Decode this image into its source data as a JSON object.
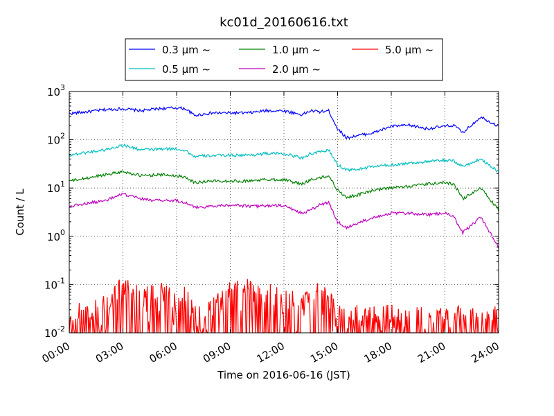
{
  "chart_data": {
    "type": "line",
    "title": "kc01d_20160616.txt",
    "xlabel": "Time on 2016-06-16 (JST)",
    "ylabel": "Count / L",
    "x_ticks": [
      "00:00",
      "03:00",
      "06:00",
      "09:00",
      "12:00",
      "15:00",
      "18:00",
      "21:00",
      "24:00"
    ],
    "x_unit_hours": [
      0,
      24
    ],
    "y_scale": "log",
    "ylim": [
      0.01,
      1000
    ],
    "y_ticks": [
      {
        "base": "10",
        "exp": "-2"
      },
      {
        "base": "10",
        "exp": "-1"
      },
      {
        "base": "10",
        "exp": "0"
      },
      {
        "base": "10",
        "exp": "1"
      },
      {
        "base": "10",
        "exp": "2"
      },
      {
        "base": "10",
        "exp": "3"
      }
    ],
    "grid": true,
    "legend_position": "top",
    "series": [
      {
        "name": "0.3 μm ~",
        "color": "#0000ff",
        "x": [
          0,
          1,
          2,
          3,
          4,
          5,
          6,
          6.5,
          7,
          8,
          9,
          10,
          11,
          12,
          13,
          13.5,
          14,
          14.5,
          15,
          15.5,
          16,
          17,
          18,
          19,
          20,
          21,
          21.5,
          22,
          23,
          24
        ],
        "y": [
          350,
          380,
          420,
          440,
          400,
          440,
          460,
          440,
          320,
          360,
          360,
          360,
          400,
          400,
          330,
          400,
          380,
          400,
          170,
          110,
          120,
          140,
          190,
          200,
          170,
          190,
          200,
          140,
          300,
          190
        ]
      },
      {
        "name": "0.5 μm ~",
        "color": "#00bfbf",
        "x": [
          0,
          1,
          2,
          3,
          4,
          5,
          6,
          6.5,
          7,
          8,
          9,
          10,
          11,
          12,
          13,
          13.5,
          14,
          14.5,
          15,
          15.5,
          16,
          17,
          18,
          19,
          20,
          21,
          21.5,
          22,
          23,
          24
        ],
        "y": [
          48,
          55,
          62,
          78,
          62,
          64,
          65,
          60,
          45,
          47,
          48,
          48,
          52,
          52,
          42,
          52,
          55,
          62,
          30,
          24,
          24,
          28,
          30,
          33,
          35,
          38,
          36,
          28,
          40,
          22
        ]
      },
      {
        "name": "1.0 μm ~",
        "color": "#008000",
        "x": [
          0,
          1,
          2,
          3,
          4,
          5,
          6,
          6.5,
          7,
          8,
          9,
          10,
          11,
          12,
          13,
          13.5,
          14,
          14.5,
          15,
          15.5,
          16,
          17,
          18,
          19,
          20,
          21,
          21.5,
          22,
          23,
          24
        ],
        "y": [
          14,
          16,
          19,
          22,
          18,
          19,
          18,
          17,
          13,
          14,
          14,
          14,
          15,
          15,
          12,
          15,
          16,
          18,
          9,
          6.5,
          7,
          9,
          10,
          11,
          12,
          13,
          12,
          6,
          10,
          3.5
        ]
      },
      {
        "name": "2.0 μm ~",
        "color": "#bf00bf",
        "x": [
          0,
          1,
          2,
          3,
          4,
          5,
          6,
          6.5,
          7,
          8,
          9,
          10,
          11,
          12,
          13,
          13.5,
          14,
          14.5,
          15,
          15.5,
          16,
          17,
          18,
          19,
          20,
          21,
          21.5,
          22,
          23,
          24
        ],
        "y": [
          4.2,
          4.8,
          5.5,
          7.5,
          6,
          5.5,
          5.5,
          5,
          4,
          4.2,
          4.5,
          4.2,
          4.3,
          4.3,
          3,
          3.5,
          4.5,
          5,
          2,
          1.5,
          1.8,
          2.5,
          3,
          3,
          2.8,
          3,
          2.5,
          1.2,
          2.5,
          0.6
        ]
      },
      {
        "name": "5.0 μm ~",
        "color": "#ff0000",
        "x": [
          0,
          0.5,
          1,
          1.5,
          2,
          2.5,
          3,
          3.5,
          4,
          4.5,
          5,
          5.5,
          6,
          6.5,
          7,
          7.5,
          8,
          8.5,
          9,
          9.5,
          10,
          10.5,
          11,
          11.5,
          12,
          12.5,
          13,
          13.5,
          14,
          14.5,
          15,
          15.5,
          16,
          16.5,
          17,
          17.5,
          18,
          18.5,
          19,
          19.5,
          20,
          20.5,
          21,
          21.5,
          22,
          22.5,
          23,
          23.5,
          24
        ],
        "y": [
          0.01,
          0.03,
          0.02,
          0.04,
          0.03,
          0.06,
          0.09,
          0.07,
          0.06,
          0.05,
          0.07,
          0.05,
          0.04,
          0.06,
          0.02,
          0.02,
          0.03,
          0.04,
          0.08,
          0.06,
          0.07,
          0.05,
          0.07,
          0.05,
          0.04,
          0.04,
          0.03,
          0.05,
          0.06,
          0.05,
          0.02,
          0.02,
          0.02,
          0.02,
          0.02,
          0.02,
          0.02,
          0.02,
          0.02,
          0.02,
          0.02,
          0.02,
          0.02,
          0.02,
          0.02,
          0.02,
          0.02,
          0.02,
          0.02
        ]
      }
    ]
  }
}
